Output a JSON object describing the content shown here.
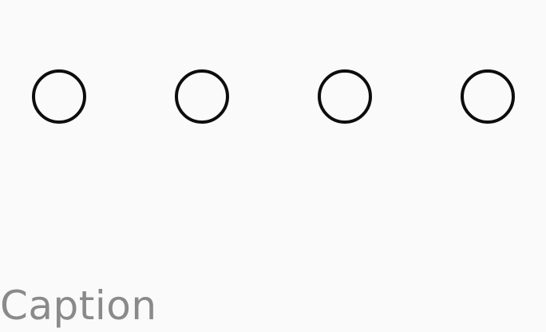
{
  "radio_group": {
    "options": [
      {
        "selected": false
      },
      {
        "selected": false
      },
      {
        "selected": false
      },
      {
        "selected": false
      }
    ]
  },
  "caption": "Caption",
  "colors": {
    "background": "#fafafa",
    "radio_border": "#0d0d0d",
    "caption_text": "#8a8a8a"
  }
}
